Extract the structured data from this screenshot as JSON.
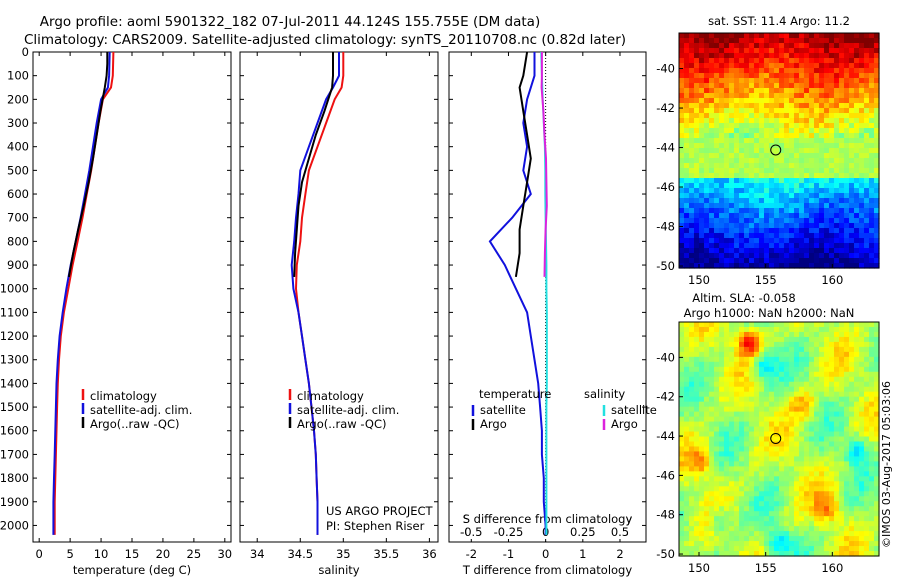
{
  "header": {
    "line1": "Argo profile: aoml 5901322_182 07-Jul-2011 44.124S 155.755E (DM data)",
    "line2": "Climatology: CARS2009. Satellite-adjusted climatology: synTS_20110708.nc (0.82d later)"
  },
  "colors": {
    "climatology": "#ee1111",
    "satellite": "#1111dd",
    "argo": "#000000",
    "sat_salinity": "#22e0e0",
    "argo_salinity": "#dd22dd"
  },
  "chart_data": [
    {
      "type": "line",
      "panel": "temperature",
      "xlabel": "temperature (deg C)",
      "ylabel": "",
      "xlim": [
        -1,
        31
      ],
      "ylim": [
        2070,
        0
      ],
      "xticks": [
        0,
        5,
        10,
        15,
        20,
        25,
        30
      ],
      "yticks": [
        0,
        100,
        200,
        300,
        400,
        500,
        600,
        700,
        800,
        900,
        1000,
        1100,
        1200,
        1300,
        1400,
        1500,
        1600,
        1700,
        1800,
        1900,
        2000
      ],
      "legend": [
        "climatology",
        "satellite-adj. clim.",
        "Argo(..raw -QC)"
      ],
      "series": [
        {
          "name": "climatology",
          "color": "climatology",
          "x": [
            12.0,
            11.9,
            11.6,
            10.3,
            9.6,
            9.0,
            8.4,
            7.7,
            7.0,
            6.2,
            5.4,
            4.7,
            4.0,
            3.5,
            3.2,
            3.0,
            2.9,
            2.8,
            2.7,
            2.6,
            2.5,
            2.5
          ],
          "y": [
            0,
            100,
            150,
            200,
            300,
            400,
            500,
            600,
            700,
            800,
            900,
            1000,
            1100,
            1200,
            1300,
            1400,
            1500,
            1600,
            1700,
            1800,
            1900,
            2040
          ]
        },
        {
          "name": "satellite-adj. clim.",
          "color": "satellite",
          "x": [
            11.4,
            11.3,
            11.1,
            10.0,
            9.3,
            8.7,
            8.1,
            7.4,
            6.7,
            5.9,
            5.1,
            4.4,
            3.8,
            3.3,
            3.0,
            2.8,
            2.7,
            2.6,
            2.5,
            2.4,
            2.3,
            2.3
          ],
          "y": [
            0,
            100,
            150,
            200,
            300,
            400,
            500,
            600,
            700,
            800,
            900,
            1000,
            1100,
            1200,
            1300,
            1400,
            1500,
            1600,
            1700,
            1800,
            1900,
            2040
          ]
        },
        {
          "name": "Argo(..raw -QC)",
          "color": "argo",
          "x": [
            11.0,
            11.0,
            10.9,
            10.6,
            9.9,
            9.3,
            8.7,
            8.0,
            7.2,
            6.3,
            5.5,
            4.8
          ],
          "y": [
            0,
            50,
            100,
            150,
            250,
            350,
            450,
            550,
            650,
            750,
            850,
            950
          ]
        }
      ]
    },
    {
      "type": "line",
      "panel": "salinity",
      "xlabel": "salinity",
      "ylabel": "",
      "xlim": [
        33.8,
        36.1
      ],
      "ylim": [
        2070,
        0
      ],
      "xticks": [
        34,
        34.5,
        35,
        35.5,
        36
      ],
      "legend": [
        "climatology",
        "satellite-adj. clim.",
        "Argo(..raw -QC)"
      ],
      "annotation": [
        "US ARGO PROJECT",
        "PI: Stephen Riser"
      ],
      "series": [
        {
          "name": "climatology",
          "color": "climatology",
          "x": [
            35.0,
            35.0,
            34.98,
            34.9,
            34.8,
            34.7,
            34.6,
            34.56,
            34.52,
            34.5,
            34.46,
            34.45,
            34.48,
            34.52,
            34.56,
            34.6,
            34.63,
            34.66,
            34.68,
            34.69,
            34.7,
            34.7
          ],
          "y": [
            0,
            100,
            150,
            200,
            300,
            400,
            500,
            600,
            700,
            800,
            900,
            1000,
            1100,
            1200,
            1300,
            1400,
            1500,
            1600,
            1700,
            1800,
            1900,
            2040
          ]
        },
        {
          "name": "satellite-adj. clim.",
          "color": "satellite",
          "x": [
            34.95,
            34.95,
            34.88,
            34.8,
            34.7,
            34.6,
            34.5,
            34.48,
            34.45,
            34.43,
            34.4,
            34.42,
            34.48,
            34.52,
            34.56,
            34.6,
            34.63,
            34.66,
            34.68,
            34.69,
            34.7,
            34.7
          ],
          "y": [
            0,
            100,
            150,
            200,
            300,
            400,
            500,
            600,
            700,
            800,
            900,
            1000,
            1100,
            1200,
            1300,
            1400,
            1500,
            1600,
            1700,
            1800,
            1900,
            2040
          ]
        },
        {
          "name": "Argo(..raw -QC)",
          "color": "argo",
          "x": [
            34.88,
            34.88,
            34.87,
            34.78,
            34.68,
            34.6,
            34.52,
            34.48,
            34.46,
            34.44,
            34.43
          ],
          "y": [
            0,
            100,
            150,
            250,
            350,
            450,
            550,
            650,
            750,
            850,
            950
          ]
        }
      ]
    },
    {
      "type": "line",
      "panel": "difference",
      "xlabel": "T difference from climatology",
      "xlabel_top": "S difference from climatology",
      "ylabel": "",
      "xlim": [
        -2.6,
        2.7
      ],
      "ylim": [
        2070,
        0
      ],
      "xticks": [
        -2,
        -1,
        0,
        1,
        2
      ],
      "s_xticks": [
        "-0.5",
        "-0.25",
        "0",
        "0.25",
        "0.5"
      ],
      "legend": {
        "temperature": [
          "satellite",
          "Argo"
        ],
        "salinity": [
          "satellite",
          "Argo"
        ]
      },
      "legend_headers": [
        "temperature",
        "salinity"
      ],
      "series": [
        {
          "name": "satellite",
          "group": "temperature",
          "color": "satellite",
          "x": [
            -0.3,
            -0.3,
            -0.5,
            -0.6,
            -0.5,
            -0.6,
            -0.4,
            -0.9,
            -1.5,
            -1.1,
            -0.8,
            -0.5,
            -0.4,
            -0.3,
            -0.2,
            -0.15,
            -0.1,
            -0.1,
            -0.05,
            -0.05,
            0.0,
            0.0
          ],
          "y": [
            0,
            100,
            200,
            300,
            400,
            500,
            600,
            700,
            800,
            900,
            1000,
            1100,
            1200,
            1300,
            1400,
            1500,
            1600,
            1700,
            1800,
            1900,
            2000,
            2040
          ]
        },
        {
          "name": "Argo",
          "group": "temperature",
          "color": "argo",
          "x": [
            -0.5,
            -0.6,
            -0.7,
            -0.6,
            -0.5,
            -0.4,
            -0.5,
            -0.6,
            -0.7,
            -0.7,
            -0.8
          ],
          "y": [
            0,
            100,
            150,
            250,
            350,
            450,
            550,
            650,
            750,
            850,
            950
          ]
        },
        {
          "name": "satellite",
          "group": "salinity",
          "color": "sat_salinity",
          "x": [
            -0.12,
            -0.1,
            -0.08,
            -0.05,
            -0.02,
            -0.01,
            -0.01,
            0.0,
            0.01,
            0.02,
            0.02,
            0.03,
            0.03,
            0.03,
            0.03,
            0.02,
            0.02,
            0.02,
            0.02,
            0.02,
            0.02
          ],
          "y": [
            0,
            100,
            200,
            300,
            400,
            500,
            600,
            700,
            800,
            900,
            1000,
            1100,
            1200,
            1300,
            1400,
            1500,
            1600,
            1700,
            1800,
            1900,
            2040
          ]
        },
        {
          "name": "Argo",
          "group": "salinity",
          "color": "argo_salinity",
          "x": [
            -0.1,
            -0.1,
            -0.11,
            -0.06,
            -0.03,
            0.01,
            0.02,
            0.03,
            0.0,
            -0.02,
            -0.03
          ],
          "y": [
            0,
            100,
            150,
            250,
            350,
            450,
            550,
            650,
            750,
            850,
            950
          ]
        }
      ]
    },
    {
      "type": "heatmap",
      "panel": "sst_map",
      "title": "sat. SST: 11.4 Argo: 11.2",
      "xticks": [
        150,
        155,
        160
      ],
      "yticks": [
        -40,
        -42,
        -44,
        -46,
        -48,
        -50
      ],
      "xlim": [
        148.5,
        163.5
      ],
      "ylim": [
        -50.1,
        -38.2
      ],
      "marker": {
        "lon": 155.755,
        "lat": -44.124
      }
    },
    {
      "type": "heatmap",
      "panel": "sla_map",
      "title": "Altim. SLA: -0.058",
      "subtitle": "Argo h1000: NaN h2000: NaN",
      "xticks": [
        150,
        155,
        160
      ],
      "yticks": [
        -40,
        -42,
        -44,
        -46,
        -48,
        -50
      ],
      "xlim": [
        148.5,
        163.5
      ],
      "ylim": [
        -50.1,
        -38.2
      ],
      "marker": {
        "lon": 155.755,
        "lat": -44.124
      }
    }
  ],
  "watermark": "©IMOS 03-Aug-2017 05:03:06"
}
